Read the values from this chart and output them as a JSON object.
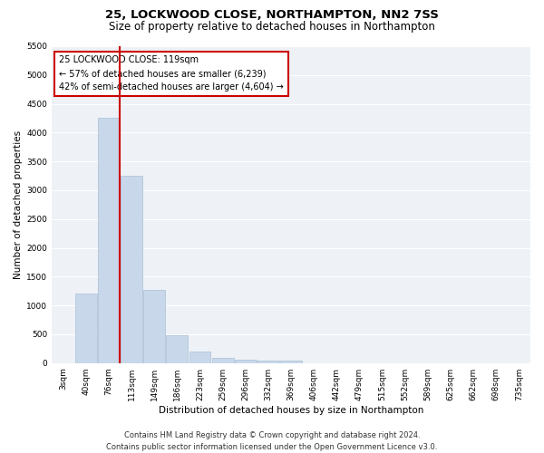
{
  "title": "25, LOCKWOOD CLOSE, NORTHAMPTON, NN2 7SS",
  "subtitle": "Size of property relative to detached houses in Northampton",
  "xlabel": "Distribution of detached houses by size in Northampton",
  "ylabel": "Number of detached properties",
  "footer_line1": "Contains HM Land Registry data © Crown copyright and database right 2024.",
  "footer_line2": "Contains public sector information licensed under the Open Government Licence v3.0.",
  "annotation_line1": "25 LOCKWOOD CLOSE: 119sqm",
  "annotation_line2": "← 57% of detached houses are smaller (6,239)",
  "annotation_line3": "42% of semi-detached houses are larger (4,604) →",
  "bar_color": "#c8d8ea",
  "bar_edge_color": "#a8c0d4",
  "vline_color": "#cc0000",
  "categories": [
    "3sqm",
    "40sqm",
    "76sqm",
    "113sqm",
    "149sqm",
    "186sqm",
    "223sqm",
    "259sqm",
    "296sqm",
    "332sqm",
    "369sqm",
    "406sqm",
    "442sqm",
    "479sqm",
    "515sqm",
    "552sqm",
    "589sqm",
    "625sqm",
    "662sqm",
    "698sqm",
    "735sqm"
  ],
  "values": [
    0,
    1200,
    4250,
    3250,
    1270,
    490,
    200,
    95,
    65,
    45,
    45,
    0,
    0,
    0,
    0,
    0,
    0,
    0,
    0,
    0,
    0
  ],
  "ylim": [
    0,
    5500
  ],
  "yticks": [
    0,
    500,
    1000,
    1500,
    2000,
    2500,
    3000,
    3500,
    4000,
    4500,
    5000,
    5500
  ],
  "vline_x": 2.5,
  "background_color": "#eef2f7",
  "grid_color": "#ffffff",
  "title_fontsize": 9.5,
  "subtitle_fontsize": 8.5,
  "axis_label_fontsize": 7.5,
  "tick_fontsize": 6.5,
  "annotation_fontsize": 7,
  "footer_fontsize": 6
}
